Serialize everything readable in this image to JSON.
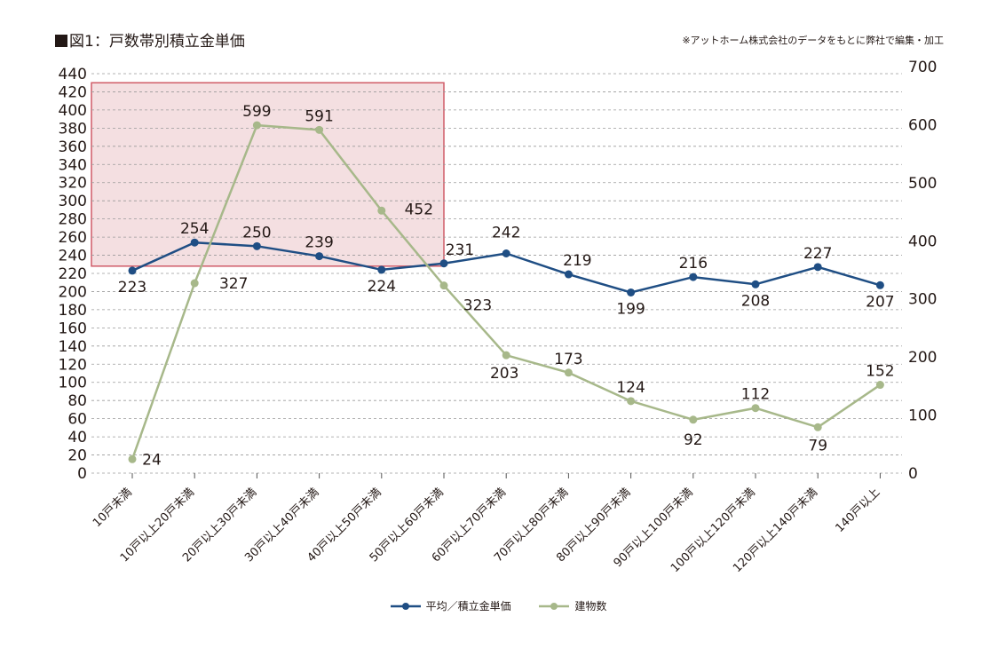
{
  "title": "図1：戸数帯別積立金単価",
  "note": "※アットホーム株式会社のデータをもとに弊社で編集・加工",
  "chart_data": {
    "type": "line",
    "categories": [
      "10戸未満",
      "10戸以上20戸未満",
      "20戸以上30戸未満",
      "30戸以上40戸未満",
      "40戸以上50戸未満",
      "50戸以上60戸未満",
      "60戸以上70戸未満",
      "70戸以上80戸未満",
      "80戸以上90戸未満",
      "90戸以上100戸未満",
      "100戸以上120戸未満",
      "120戸以上140戸未満",
      "140戸以上"
    ],
    "series": [
      {
        "name": "平均／積立金単価",
        "axis": "left",
        "color": "#1f4e84",
        "values": [
          223,
          254,
          250,
          239,
          224,
          231,
          242,
          219,
          199,
          216,
          208,
          227,
          207
        ]
      },
      {
        "name": "建物数",
        "axis": "right",
        "color": "#a7b88a",
        "values": [
          24,
          327,
          599,
          591,
          452,
          323,
          203,
          173,
          124,
          92,
          112,
          79,
          152
        ]
      }
    ],
    "y_left": {
      "min": 0,
      "max": 440,
      "step": 20
    },
    "y_right": {
      "min": 0,
      "max": 700,
      "step": 100
    },
    "highlight": {
      "from_category": 0,
      "to_category": 5,
      "y_from": 228,
      "y_to": 430,
      "color": "#f4dfe1",
      "border": "#d05c68"
    },
    "grid": "horizontal dashed",
    "legend_position": "bottom"
  }
}
